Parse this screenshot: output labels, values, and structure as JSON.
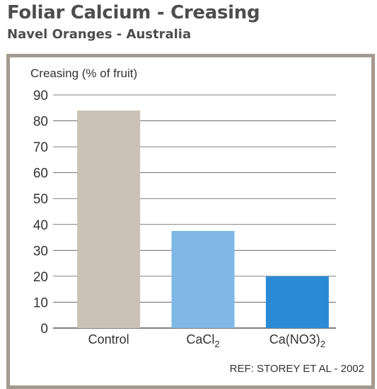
{
  "header": {
    "title": "Foliar Calcium - Creasing",
    "subtitle": "Navel Oranges - Australia"
  },
  "chart_data": {
    "type": "bar",
    "ylabel": "Creasing (% of fruit)",
    "ylim": [
      0,
      90
    ],
    "yticks": [
      0,
      10,
      20,
      30,
      40,
      50,
      60,
      70,
      80,
      90
    ],
    "grid": true,
    "categories": [
      {
        "base": "Control",
        "sub": ""
      },
      {
        "base": "CaCl",
        "sub": "2"
      },
      {
        "base": "Ca(NO3)",
        "sub": "2"
      }
    ],
    "values": [
      84,
      37.5,
      20
    ],
    "colors": [
      "#cbc1b6",
      "#7fb7e6",
      "#2b8ad5"
    ],
    "reference": "REF: STOREY ET AL - 2002"
  }
}
